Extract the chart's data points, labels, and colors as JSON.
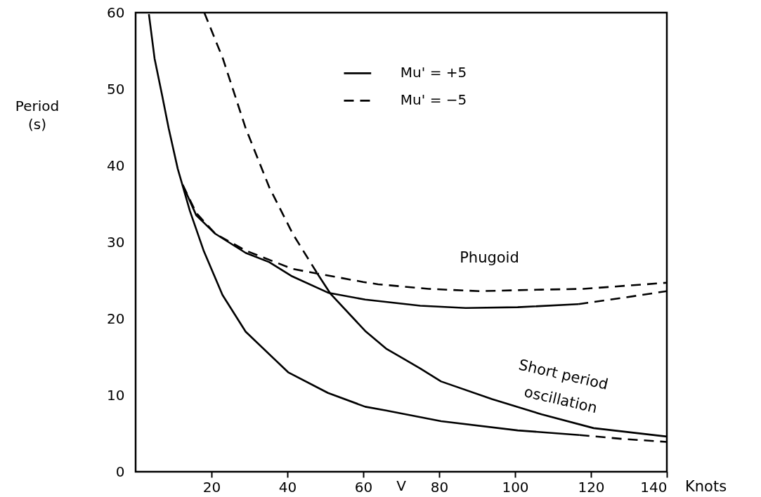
{
  "chart_data": {
    "type": "line",
    "xlabel": "V",
    "ylabel": "Period (s)",
    "xlim": [
      0,
      140
    ],
    "ylim": [
      0,
      60
    ],
    "xticks": [
      20,
      40,
      60,
      80,
      100,
      120,
      140
    ],
    "yticks": [
      0,
      10,
      20,
      30,
      40,
      50,
      60
    ],
    "grid": false,
    "legend": "top right",
    "marker": "none",
    "series": [
      {
        "name": "Mu' = +5",
        "color": "#000000",
        "line_style": "solid",
        "x": [
          3.5,
          5,
          6.9,
          8.7,
          11.1,
          14.3,
          18,
          22.9,
          29,
          40.2,
          50.7,
          60.5,
          66,
          80.5,
          100.7,
          117
        ],
        "values": [
          59.8,
          54,
          49.4,
          44.9,
          39.6,
          34.1,
          28.8,
          23.1,
          18.3,
          13.0,
          10.3,
          8.5,
          8.0,
          6.6,
          5.4,
          4.8
        ]
      },
      {
        "color": "#000000",
        "line_style": "dashed",
        "x": [
          117,
          128,
          140
        ],
        "values": [
          4.8,
          4.3,
          3.9
        ]
      },
      {
        "name": "Mu' = −5",
        "color": "#000000",
        "line_style": "dashed",
        "x": [
          18.1,
          23,
          29,
          35.2,
          41.4,
          47.9
        ],
        "values": [
          60,
          54,
          44.9,
          37.2,
          31.1,
          25.9
        ]
      },
      {
        "color": "#000000",
        "line_style": "solid",
        "x": [
          47.9,
          51.3,
          60.5,
          66,
          75,
          80.5,
          93.9,
          107,
          120.7,
          140
        ],
        "values": [
          25.9,
          23.3,
          18.4,
          16.1,
          13.5,
          11.8,
          9.5,
          7.5,
          5.7,
          4.6
        ]
      },
      {
        "color": "#000000",
        "line_style": "solid",
        "x": [
          12.4,
          16,
          21,
          29,
          35.2,
          41,
          50.7,
          60.5,
          75,
          87,
          100.7,
          116.7
        ],
        "values": [
          37.5,
          33.5,
          31.1,
          28.6,
          27.4,
          25.6,
          23.4,
          22.5,
          21.7,
          21.4,
          21.5,
          21.9
        ]
      },
      {
        "color": "#000000",
        "line_style": "dashed",
        "x": [
          116.7,
          128,
          140
        ],
        "values": [
          21.9,
          22.7,
          23.6
        ]
      },
      {
        "color": "#000000",
        "line_style": "dashed",
        "x": [
          12.4,
          16,
          21,
          29,
          41.4,
          47.9,
          60,
          63.9,
          77.2,
          90.6,
          107,
          118,
          129,
          140
        ],
        "values": [
          37.5,
          33.8,
          31.1,
          28.9,
          26.5,
          25.9,
          24.8,
          24.5,
          23.9,
          23.6,
          23.8,
          23.9,
          24.3,
          24.7
        ]
      }
    ],
    "annotations": [
      "Phugoid",
      "Short period",
      "oscillation",
      "Knots"
    ]
  }
}
